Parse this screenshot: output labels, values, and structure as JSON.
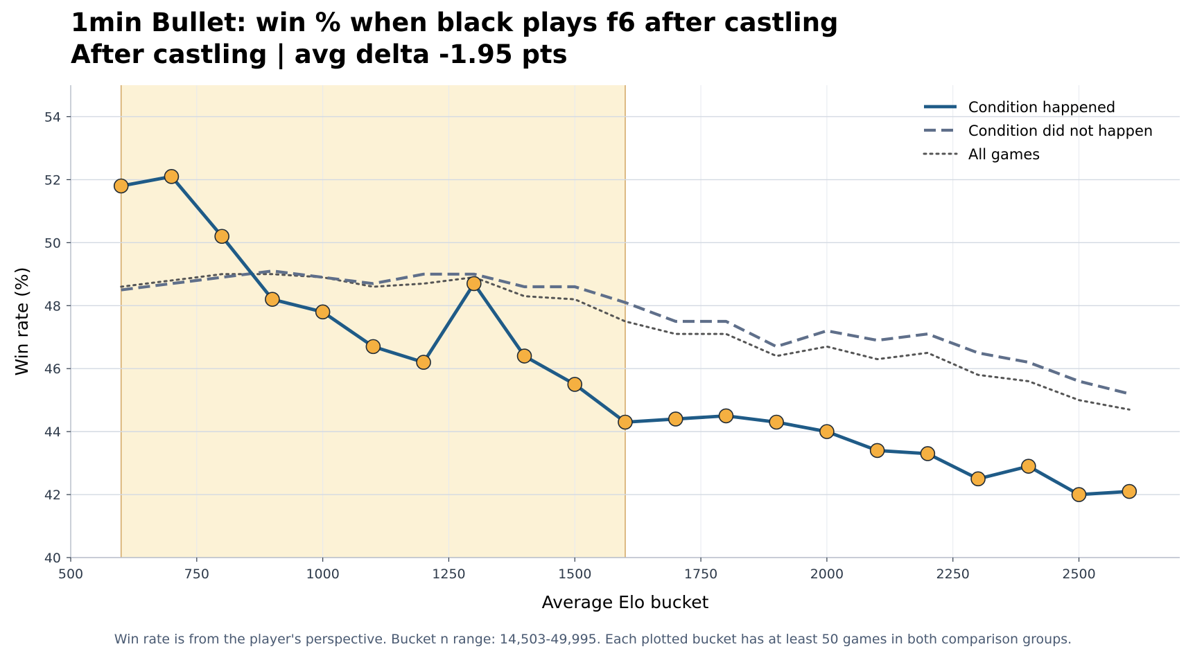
{
  "chart_data": {
    "type": "line",
    "title": "1min Bullet: win % when black plays f6 after castling",
    "subtitle": "After castling | avg delta -1.95 pts",
    "xlabel": "Average Elo bucket",
    "ylabel": "Win rate (%)",
    "xlim": [
      500,
      2700
    ],
    "ylim": [
      40,
      55
    ],
    "xticks": [
      500,
      750,
      1000,
      1250,
      1500,
      1750,
      2000,
      2250,
      2500
    ],
    "yticks": [
      40,
      42,
      44,
      46,
      48,
      50,
      52,
      54
    ],
    "grid": true,
    "legend_position": "top-right",
    "highlight_range": [
      600,
      1600
    ],
    "x": [
      600,
      700,
      800,
      900,
      1000,
      1100,
      1200,
      1300,
      1400,
      1500,
      1600,
      1700,
      1800,
      1900,
      2000,
      2100,
      2200,
      2300,
      2400,
      2500,
      2600
    ],
    "series": [
      {
        "name": "Condition happened",
        "style": "solid",
        "color": "#1f5b87",
        "marker_color": "#f5b041",
        "values": [
          51.8,
          52.1,
          50.2,
          48.2,
          47.8,
          46.7,
          46.2,
          48.7,
          46.4,
          45.5,
          44.3,
          44.4,
          44.5,
          44.3,
          44.0,
          43.4,
          43.3,
          42.5,
          42.9,
          42.0,
          42.1
        ]
      },
      {
        "name": "Condition did not happen",
        "style": "dashed",
        "color": "#5f6f8a",
        "values": [
          48.5,
          48.7,
          48.9,
          49.1,
          48.9,
          48.7,
          49.0,
          49.0,
          48.6,
          48.6,
          48.1,
          47.5,
          47.5,
          46.7,
          47.2,
          46.9,
          47.1,
          46.5,
          46.2,
          45.6,
          45.2
        ]
      },
      {
        "name": "All games",
        "style": "dotted",
        "color": "#555555",
        "values": [
          48.6,
          48.8,
          49.0,
          49.0,
          48.9,
          48.6,
          48.7,
          48.9,
          48.3,
          48.2,
          47.5,
          47.1,
          47.1,
          46.4,
          46.7,
          46.3,
          46.5,
          45.8,
          45.6,
          45.0,
          44.7
        ]
      }
    ],
    "footnote": "Win rate is from the player's perspective. Bucket n range: 14,503-49,995. Each plotted bucket has at least 50 games in both comparison groups."
  }
}
